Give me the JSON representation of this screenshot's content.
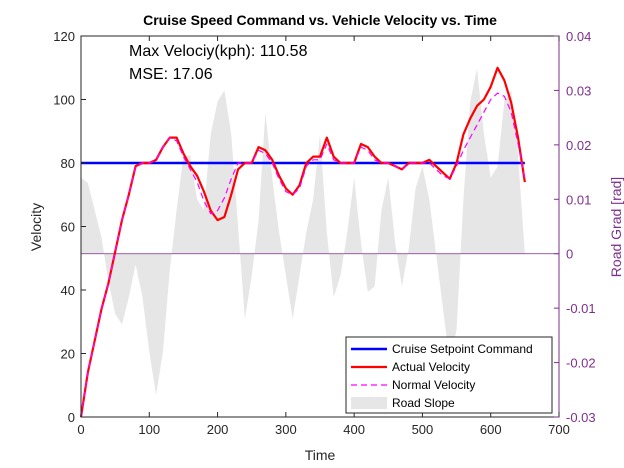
{
  "chart_data": {
    "type": "line",
    "title": "Cruise Speed Command vs. Vehicle Velocity vs. Time",
    "xlabel": "Time",
    "ylabel_left": "Velocity",
    "ylabel_right": "Road Grad [rad]",
    "xlim": [
      0,
      700
    ],
    "ylim_left": [
      0,
      120
    ],
    "ylim_right": [
      -0.03,
      0.04
    ],
    "x_ticks": [
      "0",
      "100",
      "200",
      "300",
      "400",
      "500",
      "600",
      "700"
    ],
    "y_ticks_left": [
      "0",
      "20",
      "40",
      "60",
      "80",
      "100",
      "120"
    ],
    "y_ticks_right": [
      "-0.03",
      "-0.02",
      "-0.01",
      "0",
      "0.01",
      "0.02",
      "0.03",
      "0.04"
    ],
    "grid": false,
    "legend_position": "bottom-right",
    "annotations": [
      "Max Velociy(kph): 110.58",
      "MSE: 17.06"
    ],
    "series": [
      {
        "name": "Cruise Setpoint Command",
        "axis": "left",
        "color": "#0000ff",
        "style": "solid",
        "x": [
          0,
          650
        ],
        "y": [
          80,
          80
        ]
      },
      {
        "name": "Actual Velocity",
        "axis": "left",
        "color": "#ff0000",
        "style": "solid",
        "x": [
          0,
          10,
          20,
          30,
          40,
          50,
          60,
          70,
          80,
          90,
          100,
          110,
          120,
          130,
          140,
          150,
          160,
          170,
          180,
          190,
          200,
          210,
          220,
          230,
          240,
          250,
          260,
          270,
          280,
          290,
          300,
          310,
          320,
          330,
          340,
          350,
          360,
          370,
          380,
          390,
          400,
          410,
          420,
          430,
          440,
          450,
          460,
          470,
          480,
          490,
          500,
          510,
          520,
          530,
          540,
          550,
          560,
          570,
          580,
          590,
          600,
          610,
          620,
          630,
          640,
          650
        ],
        "y": [
          0,
          14,
          24,
          34,
          42,
          52,
          62,
          70,
          79,
          80,
          80,
          81,
          85,
          88,
          88,
          83,
          79,
          76,
          71,
          65,
          62,
          63,
          70,
          78,
          80,
          80,
          85,
          84,
          81,
          76,
          72,
          70,
          73,
          80,
          82,
          82,
          88,
          82,
          80,
          80,
          80,
          86,
          85,
          82,
          80,
          80,
          79,
          78,
          80,
          80,
          80,
          81,
          79,
          77,
          75,
          80,
          89,
          94,
          98,
          100,
          104,
          110,
          106,
          99,
          88,
          74
        ]
      },
      {
        "name": "Normal Velocity",
        "axis": "left",
        "color": "#ff00ff",
        "style": "dashed",
        "x": [
          0,
          10,
          20,
          30,
          40,
          50,
          60,
          70,
          80,
          90,
          100,
          110,
          120,
          130,
          140,
          150,
          160,
          170,
          180,
          190,
          200,
          210,
          220,
          230,
          240,
          250,
          260,
          270,
          280,
          290,
          300,
          310,
          320,
          330,
          340,
          350,
          360,
          370,
          380,
          390,
          400,
          410,
          420,
          430,
          440,
          450,
          460,
          470,
          480,
          490,
          500,
          510,
          520,
          530,
          540,
          550,
          560,
          570,
          580,
          590,
          600,
          610,
          620,
          630,
          640,
          650
        ],
        "y": [
          0,
          14,
          24,
          34,
          42,
          52,
          62,
          70,
          79,
          80,
          80,
          81,
          85,
          88,
          87,
          82,
          78,
          74,
          68,
          64,
          65,
          69,
          75,
          80,
          80,
          80,
          84,
          83,
          80,
          75,
          71,
          70,
          72,
          79,
          81,
          81,
          86,
          81,
          80,
          80,
          80,
          85,
          84,
          81,
          80,
          80,
          79,
          78,
          80,
          80,
          80,
          80,
          78,
          76,
          75,
          79,
          84,
          88,
          92,
          96,
          100,
          102,
          101,
          96,
          86,
          75
        ]
      },
      {
        "name": "Road Slope",
        "axis": "right",
        "color": "#e6e6e6",
        "style": "area",
        "x": [
          0,
          10,
          20,
          30,
          40,
          50,
          60,
          70,
          80,
          90,
          100,
          110,
          120,
          130,
          140,
          150,
          160,
          170,
          180,
          190,
          200,
          210,
          220,
          230,
          240,
          250,
          260,
          270,
          280,
          290,
          300,
          310,
          320,
          330,
          340,
          350,
          360,
          370,
          380,
          390,
          400,
          410,
          420,
          430,
          440,
          450,
          460,
          470,
          480,
          490,
          500,
          510,
          520,
          530,
          540,
          550,
          560,
          570,
          580,
          590,
          600,
          610,
          620,
          630,
          640,
          650
        ],
        "y": [
          0.014,
          0.013,
          0.008,
          0.003,
          -0.005,
          -0.011,
          -0.013,
          -0.008,
          -0.002,
          -0.008,
          -0.018,
          -0.026,
          -0.018,
          -0.003,
          0.008,
          0.018,
          0.018,
          0.01,
          0.008,
          0.022,
          0.028,
          0.03,
          0.022,
          0.005,
          -0.012,
          -0.004,
          0.006,
          0.026,
          0.014,
          0.004,
          -0.004,
          -0.012,
          -0.004,
          0.004,
          0.01,
          0.022,
          0.004,
          -0.008,
          -0.004,
          0.004,
          0.014,
          0.002,
          -0.007,
          -0.006,
          0.008,
          0.014,
          0.002,
          -0.006,
          0.001,
          0.012,
          0.016,
          0.01,
          0.0,
          -0.01,
          -0.02,
          -0.014,
          0.01,
          0.028,
          0.034,
          0.022,
          0.014,
          0.016,
          0.028,
          0.03,
          0.018,
          0.0
        ]
      }
    ]
  }
}
